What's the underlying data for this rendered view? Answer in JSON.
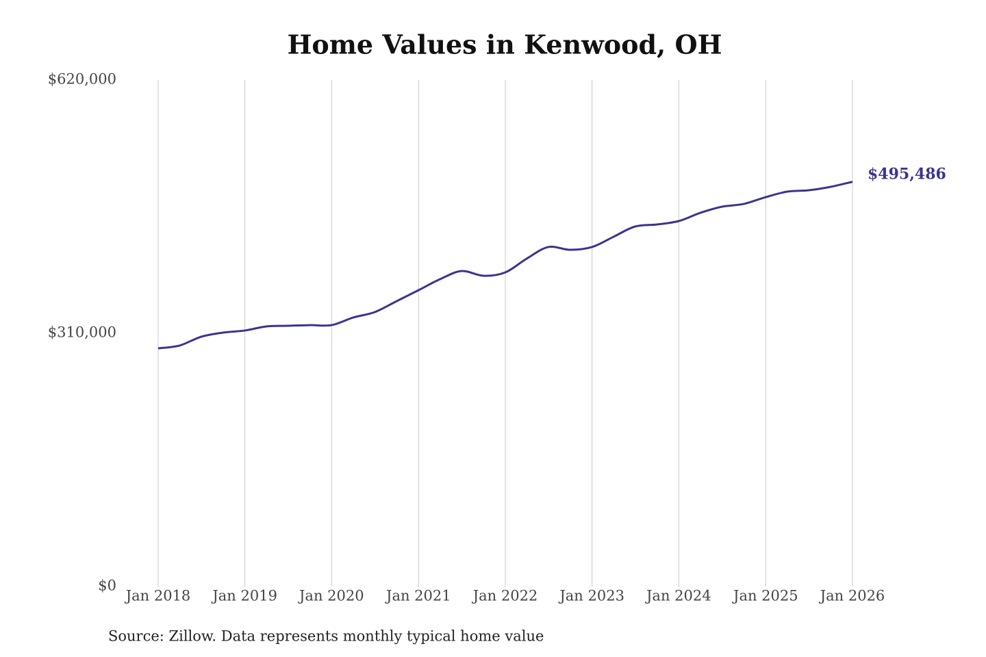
{
  "chart_data": {
    "type": "line",
    "title": "Home Values in Kenwood, OH",
    "source": "Source: Zillow. Data represents monthly typical home value",
    "x": [
      "Jan 2018",
      "Apr 2018",
      "Jul 2018",
      "Oct 2018",
      "Jan 2019",
      "Apr 2019",
      "Jul 2019",
      "Oct 2019",
      "Jan 2020",
      "Apr 2020",
      "Jul 2020",
      "Oct 2020",
      "Jan 2021",
      "Apr 2021",
      "Jul 2021",
      "Oct 2021",
      "Jan 2022",
      "Apr 2022",
      "Jul 2022",
      "Oct 2022",
      "Jan 2023",
      "Apr 2023",
      "Jul 2023",
      "Oct 2023",
      "Jan 2024",
      "Apr 2024",
      "Jul 2024",
      "Oct 2024",
      "Jan 2025",
      "Apr 2025",
      "Jul 2025",
      "Oct 2025",
      "Jan 2026"
    ],
    "series": [
      {
        "name": "Typical home value",
        "color": "#3a3491",
        "values": [
          291600,
          295000,
          305800,
          310800,
          313400,
          318400,
          319200,
          320000,
          320000,
          329300,
          336000,
          349400,
          362800,
          376200,
          386200,
          380400,
          384600,
          401400,
          415600,
          412200,
          415600,
          428100,
          440700,
          443200,
          447400,
          457500,
          465000,
          468400,
          476700,
          483400,
          485100,
          489300,
          495486
        ]
      }
    ],
    "end_label": "$495,486",
    "xlim": [
      "Jan 2018",
      "Jan 2026"
    ],
    "xticks": [
      "Jan 2018",
      "Jan 2019",
      "Jan 2020",
      "Jan 2021",
      "Jan 2022",
      "Jan 2023",
      "Jan 2024",
      "Jan 2025",
      "Jan 2026"
    ],
    "ylim": [
      0,
      620000
    ],
    "yticks": [
      {
        "value": 0,
        "label": "$0"
      },
      {
        "value": 310000,
        "label": "$310,000"
      },
      {
        "value": 620000,
        "label": "$620,000"
      }
    ],
    "grid": "x"
  }
}
